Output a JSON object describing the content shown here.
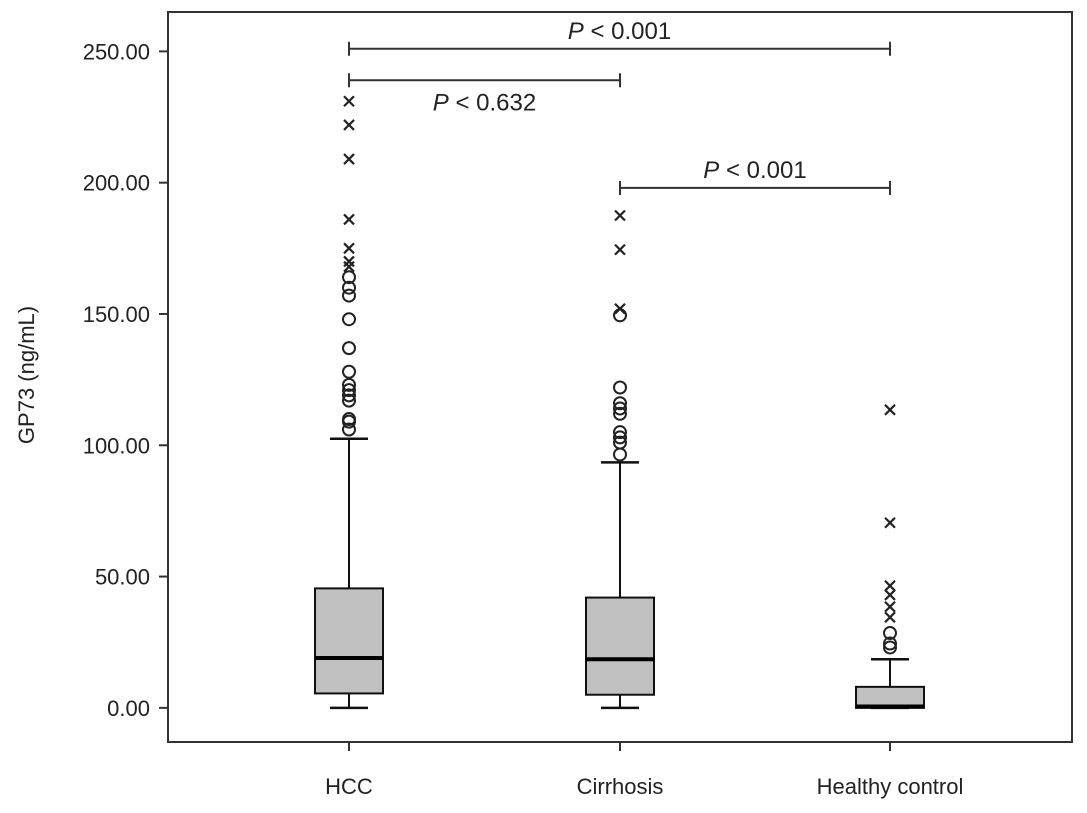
{
  "chart_data": {
    "type": "box",
    "title": "",
    "xlabel": "",
    "ylabel": "GP73 (ng/mL)",
    "ylim": [
      -13,
      265
    ],
    "yticks": [
      0,
      50,
      100,
      150,
      200,
      250
    ],
    "ytick_labels": [
      "0.00",
      "50.00",
      "100.00",
      "150.00",
      "200.00",
      "250.00"
    ],
    "grid": false,
    "box_color": "#c0c0c0",
    "categories": [
      "HCC",
      "Cirrhosis",
      "Healthy control"
    ],
    "groups": [
      {
        "name": "HCC",
        "whisker_low": 0,
        "q1": 5.5,
        "median": 19,
        "q3": 45.5,
        "whisker_high": 102.5,
        "outliers_circle": [
          106,
          109,
          110,
          117,
          119,
          121,
          123,
          128,
          137,
          148,
          157,
          160,
          164
        ],
        "outliers_extreme": [
          168,
          170,
          175,
          186,
          209,
          222,
          231
        ]
      },
      {
        "name": "Cirrhosis",
        "whisker_low": 0,
        "q1": 5,
        "median": 18.5,
        "q3": 42,
        "whisker_high": 93.5,
        "outliers_circle": [
          96.5,
          101,
          103,
          105,
          112,
          114,
          116,
          122,
          149.5
        ],
        "outliers_extreme": [
          152,
          174.5,
          187.5
        ]
      },
      {
        "name": "Healthy control",
        "whisker_low": 0,
        "q1": 0,
        "median": 0.5,
        "q3": 8,
        "whisker_high": 18.5,
        "outliers_circle": [
          23,
          24.5,
          28.5
        ],
        "outliers_extreme": [
          34.5,
          38.5,
          43,
          46.5,
          70.5,
          113.5
        ]
      }
    ],
    "comparisons": [
      {
        "from": "HCC",
        "to": "Healthy control",
        "y": 251,
        "stat": "P",
        "text": " < 0.001",
        "label_pos": "above"
      },
      {
        "from": "HCC",
        "to": "Cirrhosis",
        "y": 239,
        "stat": "P",
        "text": " < 0.632",
        "label_pos": "below"
      },
      {
        "from": "Cirrhosis",
        "to": "Healthy control",
        "y": 198,
        "stat": "P",
        "text": " < 0.001",
        "label_pos": "above"
      }
    ]
  }
}
